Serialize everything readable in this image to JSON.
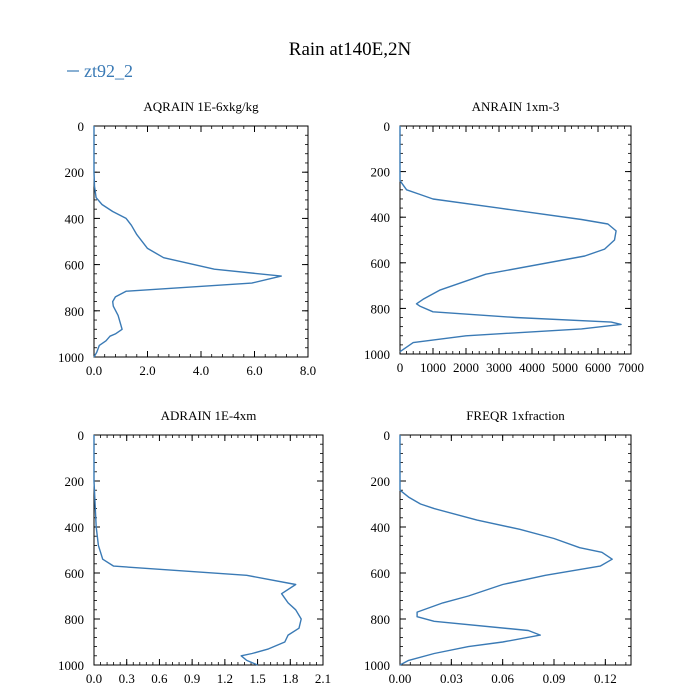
{
  "figure": {
    "title": "Rain at140E,2N",
    "legend_label": "zt92_2",
    "line_color": "#3a7ab5"
  },
  "chart_data": [
    {
      "type": "line",
      "title": "AQRAIN  1E-6xkg/kg",
      "xlim": [
        0,
        8
      ],
      "ylim": [
        1000,
        0
      ],
      "xticks": [
        0,
        2,
        4,
        6,
        8
      ],
      "xtick_labels": [
        "0.0",
        "2.0",
        "4.0",
        "6.0",
        "8.0"
      ],
      "yticks": [
        0,
        200,
        400,
        600,
        800,
        1000
      ],
      "ytick_labels": [
        "0",
        "200",
        "400",
        "600",
        "800",
        "1000"
      ],
      "series": [
        {
          "name": "zt92_2",
          "x": [
            0,
            0,
            0,
            0.02,
            0.08,
            0.3,
            0.7,
            1.2,
            1.4,
            1.6,
            2.0,
            2.6,
            4.5,
            7.0,
            5.9,
            1.2,
            0.8,
            0.7,
            0.72,
            0.9,
            1.05,
            0.8,
            0.6,
            0.45,
            0.2,
            0.1,
            0
          ],
          "y": [
            0,
            100,
            200,
            260,
            310,
            340,
            370,
            400,
            430,
            470,
            530,
            570,
            620,
            650,
            680,
            715,
            740,
            760,
            780,
            820,
            880,
            900,
            910,
            930,
            950,
            980,
            1000
          ]
        }
      ]
    },
    {
      "type": "line",
      "title": "ANRAIN  1xm-3",
      "xlim": [
        0,
        7000
      ],
      "ylim": [
        1000,
        0
      ],
      "xticks": [
        0,
        1000,
        2000,
        3000,
        4000,
        5000,
        6000,
        7000
      ],
      "xtick_labels": [
        "0",
        "1000",
        "2000",
        "3000",
        "4000",
        "5000",
        "6000",
        "7000"
      ],
      "yticks": [
        0,
        200,
        400,
        600,
        800,
        1000
      ],
      "ytick_labels": [
        "0",
        "200",
        "400",
        "600",
        "800",
        "1000"
      ],
      "series": [
        {
          "name": "zt92_2",
          "x": [
            0,
            0,
            0,
            200,
            600,
            1000,
            3000,
            5500,
            6300,
            6550,
            6500,
            6200,
            5600,
            2600,
            1200,
            700,
            500,
            600,
            1000,
            3500,
            6400,
            6700,
            5500,
            2000,
            400,
            0
          ],
          "y": [
            0,
            100,
            240,
            280,
            300,
            320,
            360,
            410,
            430,
            460,
            500,
            540,
            570,
            650,
            720,
            760,
            780,
            790,
            815,
            840,
            860,
            870,
            890,
            920,
            950,
            990
          ]
        }
      ]
    },
    {
      "type": "line",
      "title": "ADRAIN  1E-4xm",
      "xlim": [
        0,
        2.1
      ],
      "ylim": [
        1000,
        0
      ],
      "xticks": [
        0,
        0.3,
        0.6,
        0.9,
        1.2,
        1.5,
        1.8,
        2.1
      ],
      "xtick_labels": [
        "0.0",
        "0.3",
        "0.6",
        "0.9",
        "1.2",
        "1.5",
        "1.8",
        "2.1"
      ],
      "yticks": [
        0,
        200,
        400,
        600,
        800,
        1000
      ],
      "ytick_labels": [
        "0",
        "200",
        "400",
        "600",
        "800",
        "1000"
      ],
      "series": [
        {
          "name": "zt92_2",
          "x": [
            0,
            0,
            0,
            0.01,
            0.02,
            0.04,
            0.08,
            0.18,
            1.4,
            1.85,
            1.72,
            1.78,
            1.85,
            1.9,
            1.88,
            1.78,
            1.75,
            1.6,
            1.45,
            1.35,
            1.4,
            1.5
          ],
          "y": [
            0,
            100,
            200,
            300,
            400,
            480,
            540,
            570,
            610,
            650,
            690,
            730,
            760,
            800,
            840,
            870,
            900,
            930,
            950,
            960,
            980,
            1000
          ]
        }
      ]
    },
    {
      "type": "line",
      "title": "FREQR  1xfraction",
      "xlim": [
        0,
        0.135
      ],
      "ylim": [
        1000,
        0
      ],
      "xticks": [
        0,
        0.03,
        0.06,
        0.09,
        0.12
      ],
      "xtick_labels": [
        "0.00",
        "0.03",
        "0.06",
        "0.09",
        "0.12"
      ],
      "yticks": [
        0,
        200,
        400,
        600,
        800,
        1000
      ],
      "ytick_labels": [
        "0",
        "200",
        "400",
        "600",
        "800",
        "1000"
      ],
      "series": [
        {
          "name": "zt92_2",
          "x": [
            0,
            0,
            0,
            0.005,
            0.012,
            0.02,
            0.045,
            0.07,
            0.09,
            0.105,
            0.118,
            0.124,
            0.117,
            0.085,
            0.06,
            0.04,
            0.025,
            0.01,
            0.01,
            0.02,
            0.075,
            0.082,
            0.06,
            0.04,
            0.02,
            0.005,
            0
          ],
          "y": [
            0,
            100,
            240,
            270,
            300,
            320,
            370,
            410,
            450,
            490,
            510,
            540,
            570,
            610,
            650,
            700,
            730,
            770,
            790,
            810,
            850,
            870,
            900,
            920,
            950,
            980,
            1000
          ]
        }
      ]
    }
  ]
}
